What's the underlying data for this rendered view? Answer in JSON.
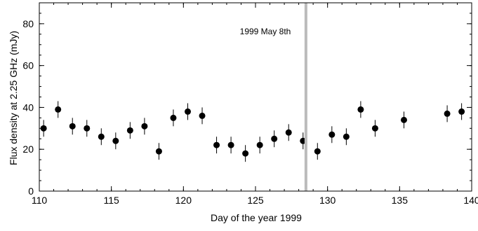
{
  "chart_data": {
    "type": "scatter",
    "xlabel": "Day of the year 1999",
    "ylabel": "Flux density at 2.25 GHz (mJy)",
    "xlim": [
      110,
      140
    ],
    "ylim": [
      0,
      90
    ],
    "xticks": [
      110,
      115,
      120,
      125,
      130,
      135,
      140
    ],
    "yticks": [
      0,
      20,
      40,
      60,
      80
    ],
    "xminor": 1,
    "yminor": 5,
    "grid": false,
    "legend": "none",
    "colors": {
      "points": "#000000",
      "marker_line": "#bbbbbb"
    },
    "marker_line": {
      "x": 128.5,
      "label": "1999 May 8th"
    },
    "series": [
      {
        "x": [
          110.3,
          111.3,
          112.3,
          113.3,
          114.3,
          115.3,
          116.3,
          117.3,
          118.3,
          119.3,
          120.3,
          121.3,
          122.3,
          123.3,
          124.3,
          125.3,
          126.3,
          127.3,
          128.3,
          129.3,
          130.3,
          131.3,
          132.3,
          133.3,
          135.3,
          138.3,
          139.3
        ],
        "y": [
          30,
          39,
          31,
          30,
          26,
          24,
          29,
          31,
          19,
          35,
          38,
          36,
          22,
          22,
          18,
          22,
          25,
          28,
          24,
          19,
          27,
          26,
          39,
          30,
          34,
          37,
          38
        ],
        "err": [
          4,
          4,
          4,
          4,
          4,
          4,
          4,
          4,
          4,
          4,
          4,
          4,
          4,
          4,
          4,
          4,
          4,
          4,
          4,
          4,
          4,
          4,
          4,
          4,
          4,
          4,
          4
        ]
      }
    ]
  }
}
